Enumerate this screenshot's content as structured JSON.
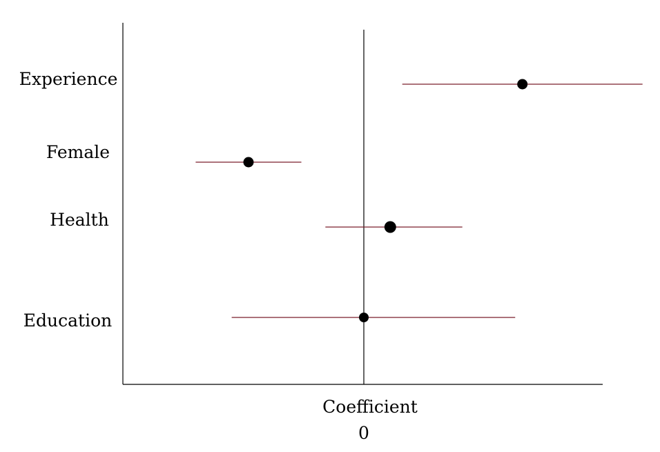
{
  "chart_data": {
    "type": "scatter",
    "subtype": "coefficient-plot",
    "title": "",
    "xlabel": "Coefficient",
    "ylabel": "",
    "x_tick_labels": [
      "0"
    ],
    "xlim": [
      -1.0,
      1.0
    ],
    "reference_line_x": 0,
    "grid": false,
    "legend": "none",
    "categories": [
      "Experience",
      "Female",
      "Health",
      "Education"
    ],
    "points": [
      {
        "label": "Experience",
        "estimate": 0.66,
        "ci": [
          0.16,
          1.16
        ]
      },
      {
        "label": "Female",
        "estimate": -0.48,
        "ci": [
          -0.7,
          -0.26
        ]
      },
      {
        "label": "Health",
        "estimate": 0.11,
        "ci": [
          -0.16,
          0.41
        ]
      },
      {
        "label": "Education",
        "estimate": 0.0,
        "ci": [
          -0.55,
          0.63
        ]
      }
    ],
    "colors": {
      "ci_line": "#7a1f2b",
      "point": "#000000",
      "axis": "#000000"
    }
  }
}
